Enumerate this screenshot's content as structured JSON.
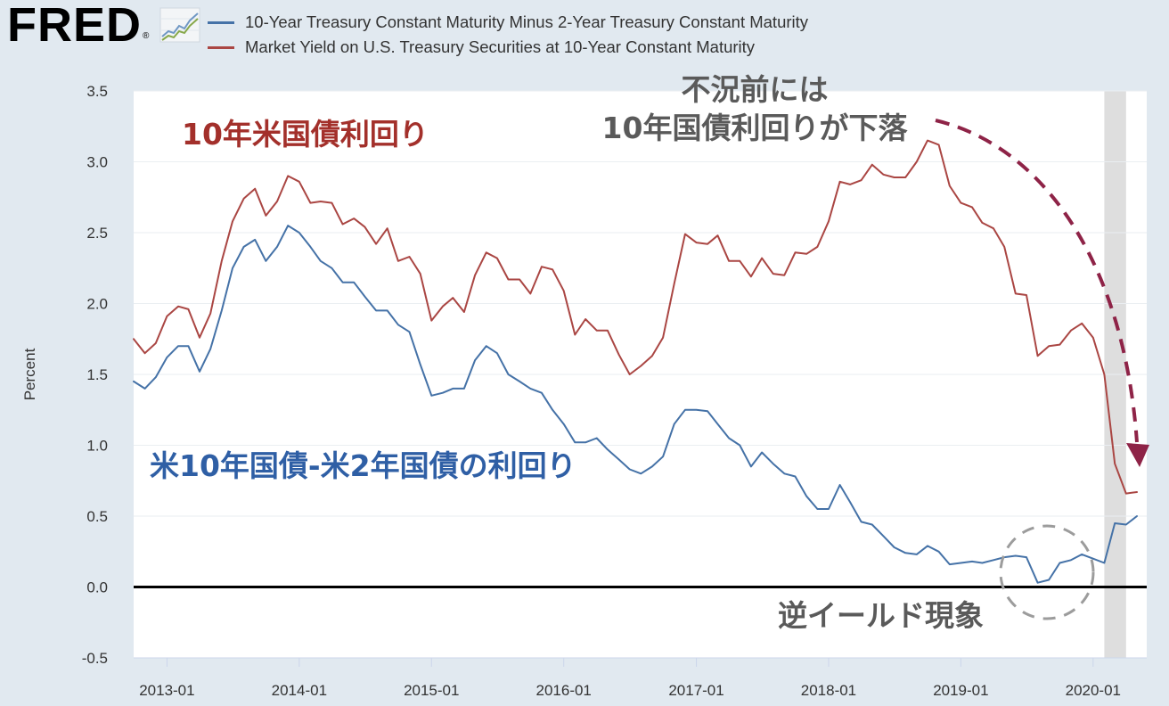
{
  "logo": {
    "text": "FRED",
    "mark": "®",
    "icon": "fred-graph-icon"
  },
  "annotations": {
    "ten_year_yield": "10年米国債利回り",
    "pre_recession_line1": "不況前には",
    "pre_recession_line2": "10年国債利回りが下落",
    "spread": "米10年国債-米2年国債の利回り",
    "inversion": "逆イールド現象"
  },
  "chart_data": {
    "type": "line",
    "ylabel": "Percent",
    "xlim": [
      "2012-10-01",
      "2020-05-28"
    ],
    "ylim": [
      -0.5,
      3.5
    ],
    "xticks": [
      "2013-01",
      "2014-01",
      "2015-01",
      "2016-01",
      "2017-01",
      "2018-01",
      "2019-01",
      "2020-01"
    ],
    "yticks": [
      "3.5",
      "3.0",
      "2.5",
      "2.0",
      "1.5",
      "1.0",
      "0.5",
      "0.0",
      "-0.5"
    ],
    "grid": true,
    "legend_position": "top",
    "reference_line": 0.0,
    "recessions": [
      {
        "start": "2020-02-01",
        "end": "2020-04-01"
      }
    ],
    "x": [
      "2012-10",
      "2012-11",
      "2012-12",
      "2013-01",
      "2013-02",
      "2013-03",
      "2013-04",
      "2013-05",
      "2013-06",
      "2013-07",
      "2013-08",
      "2013-09",
      "2013-10",
      "2013-11",
      "2013-12",
      "2014-01",
      "2014-02",
      "2014-03",
      "2014-04",
      "2014-05",
      "2014-06",
      "2014-07",
      "2014-08",
      "2014-09",
      "2014-10",
      "2014-11",
      "2014-12",
      "2015-01",
      "2015-02",
      "2015-03",
      "2015-04",
      "2015-05",
      "2015-06",
      "2015-07",
      "2015-08",
      "2015-09",
      "2015-10",
      "2015-11",
      "2015-12",
      "2016-01",
      "2016-02",
      "2016-03",
      "2016-04",
      "2016-05",
      "2016-06",
      "2016-07",
      "2016-08",
      "2016-09",
      "2016-10",
      "2016-11",
      "2016-12",
      "2017-01",
      "2017-02",
      "2017-03",
      "2017-04",
      "2017-05",
      "2017-06",
      "2017-07",
      "2017-08",
      "2017-09",
      "2017-10",
      "2017-11",
      "2017-12",
      "2018-01",
      "2018-02",
      "2018-03",
      "2018-04",
      "2018-05",
      "2018-06",
      "2018-07",
      "2018-08",
      "2018-09",
      "2018-10",
      "2018-11",
      "2018-12",
      "2019-01",
      "2019-02",
      "2019-03",
      "2019-04",
      "2019-05",
      "2019-06",
      "2019-07",
      "2019-08",
      "2019-09",
      "2019-10",
      "2019-11",
      "2019-12",
      "2020-01",
      "2020-02",
      "2020-03",
      "2020-04",
      "2020-05"
    ],
    "series": [
      {
        "name": "10-Year Treasury Constant Maturity Minus 2-Year Treasury Constant Maturity",
        "color": "#4572a7",
        "values": [
          1.45,
          1.4,
          1.48,
          1.62,
          1.7,
          1.7,
          1.52,
          1.68,
          1.95,
          2.25,
          2.4,
          2.45,
          2.3,
          2.4,
          2.55,
          2.5,
          2.4,
          2.3,
          2.25,
          2.15,
          2.15,
          2.05,
          1.95,
          1.95,
          1.85,
          1.8,
          1.57,
          1.35,
          1.37,
          1.4,
          1.4,
          1.6,
          1.7,
          1.65,
          1.5,
          1.45,
          1.4,
          1.37,
          1.25,
          1.15,
          1.02,
          1.02,
          1.05,
          0.97,
          0.9,
          0.83,
          0.8,
          0.85,
          0.92,
          1.15,
          1.25,
          1.25,
          1.24,
          1.15,
          1.05,
          1.0,
          0.85,
          0.95,
          0.87,
          0.8,
          0.78,
          0.64,
          0.55,
          0.55,
          0.72,
          0.6,
          0.46,
          0.44,
          0.36,
          0.28,
          0.24,
          0.23,
          0.29,
          0.25,
          0.16,
          0.17,
          0.18,
          0.17,
          0.19,
          0.21,
          0.22,
          0.21,
          0.03,
          0.05,
          0.17,
          0.19,
          0.23,
          0.2,
          0.17,
          0.45,
          0.44,
          0.5
        ]
      },
      {
        "name": "Market Yield on U.S. Treasury Securities at 10-Year Constant Maturity",
        "color": "#aa4643",
        "values": [
          1.75,
          1.65,
          1.72,
          1.91,
          1.98,
          1.96,
          1.76,
          1.93,
          2.3,
          2.58,
          2.74,
          2.81,
          2.62,
          2.72,
          2.9,
          2.86,
          2.71,
          2.72,
          2.71,
          2.56,
          2.6,
          2.54,
          2.42,
          2.53,
          2.3,
          2.33,
          2.21,
          1.88,
          1.98,
          2.04,
          1.94,
          2.2,
          2.36,
          2.32,
          2.17,
          2.17,
          2.07,
          2.26,
          2.24,
          2.09,
          1.78,
          1.89,
          1.81,
          1.81,
          1.64,
          1.5,
          1.56,
          1.63,
          1.76,
          2.14,
          2.49,
          2.43,
          2.42,
          2.48,
          2.3,
          2.3,
          2.19,
          2.32,
          2.21,
          2.2,
          2.36,
          2.35,
          2.4,
          2.58,
          2.86,
          2.84,
          2.87,
          2.98,
          2.91,
          2.89,
          2.89,
          3.0,
          3.15,
          3.12,
          2.83,
          2.71,
          2.68,
          2.57,
          2.53,
          2.4,
          2.07,
          2.06,
          1.63,
          1.7,
          1.71,
          1.81,
          1.86,
          1.76,
          1.5,
          0.87,
          0.66,
          0.67
        ]
      }
    ]
  }
}
